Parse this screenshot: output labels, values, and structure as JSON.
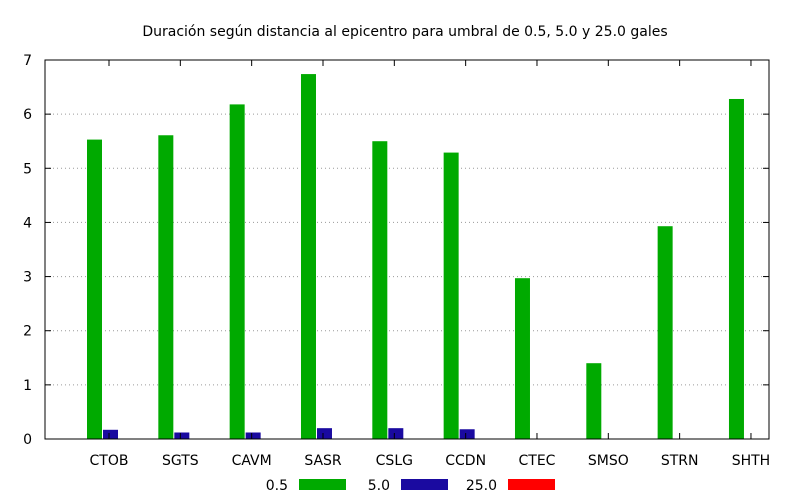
{
  "chart_data": {
    "type": "bar",
    "title": "Duración según distancia al epicentro para umbral de 0.5, 5.0 y 25.0 gales",
    "xlabel": "",
    "ylabel": "",
    "categories": [
      "CTOB",
      "SGTS",
      "CAVM",
      "SASR",
      "CSLG",
      "CCDN",
      "CTEC",
      "SMSO",
      "STRN",
      "SHTH"
    ],
    "series": [
      {
        "name": "0.5",
        "color": "#00aa00",
        "values": [
          5.53,
          5.61,
          6.18,
          6.74,
          5.5,
          5.29,
          2.97,
          1.4,
          3.93,
          6.28
        ]
      },
      {
        "name": "5.0",
        "color": "#1a0aa0",
        "values": [
          0.17,
          0.12,
          0.12,
          0.2,
          0.2,
          0.18,
          0,
          0,
          0,
          0
        ]
      },
      {
        "name": "25.0",
        "color": "#ff0000",
        "values": [
          0,
          0,
          0,
          0,
          0,
          0,
          0,
          0,
          0,
          0
        ]
      }
    ],
    "ylim": [
      0,
      7
    ],
    "yticks": [
      0,
      1,
      2,
      3,
      4,
      5,
      6,
      7
    ],
    "grid": true,
    "legend_position": "bottom"
  }
}
